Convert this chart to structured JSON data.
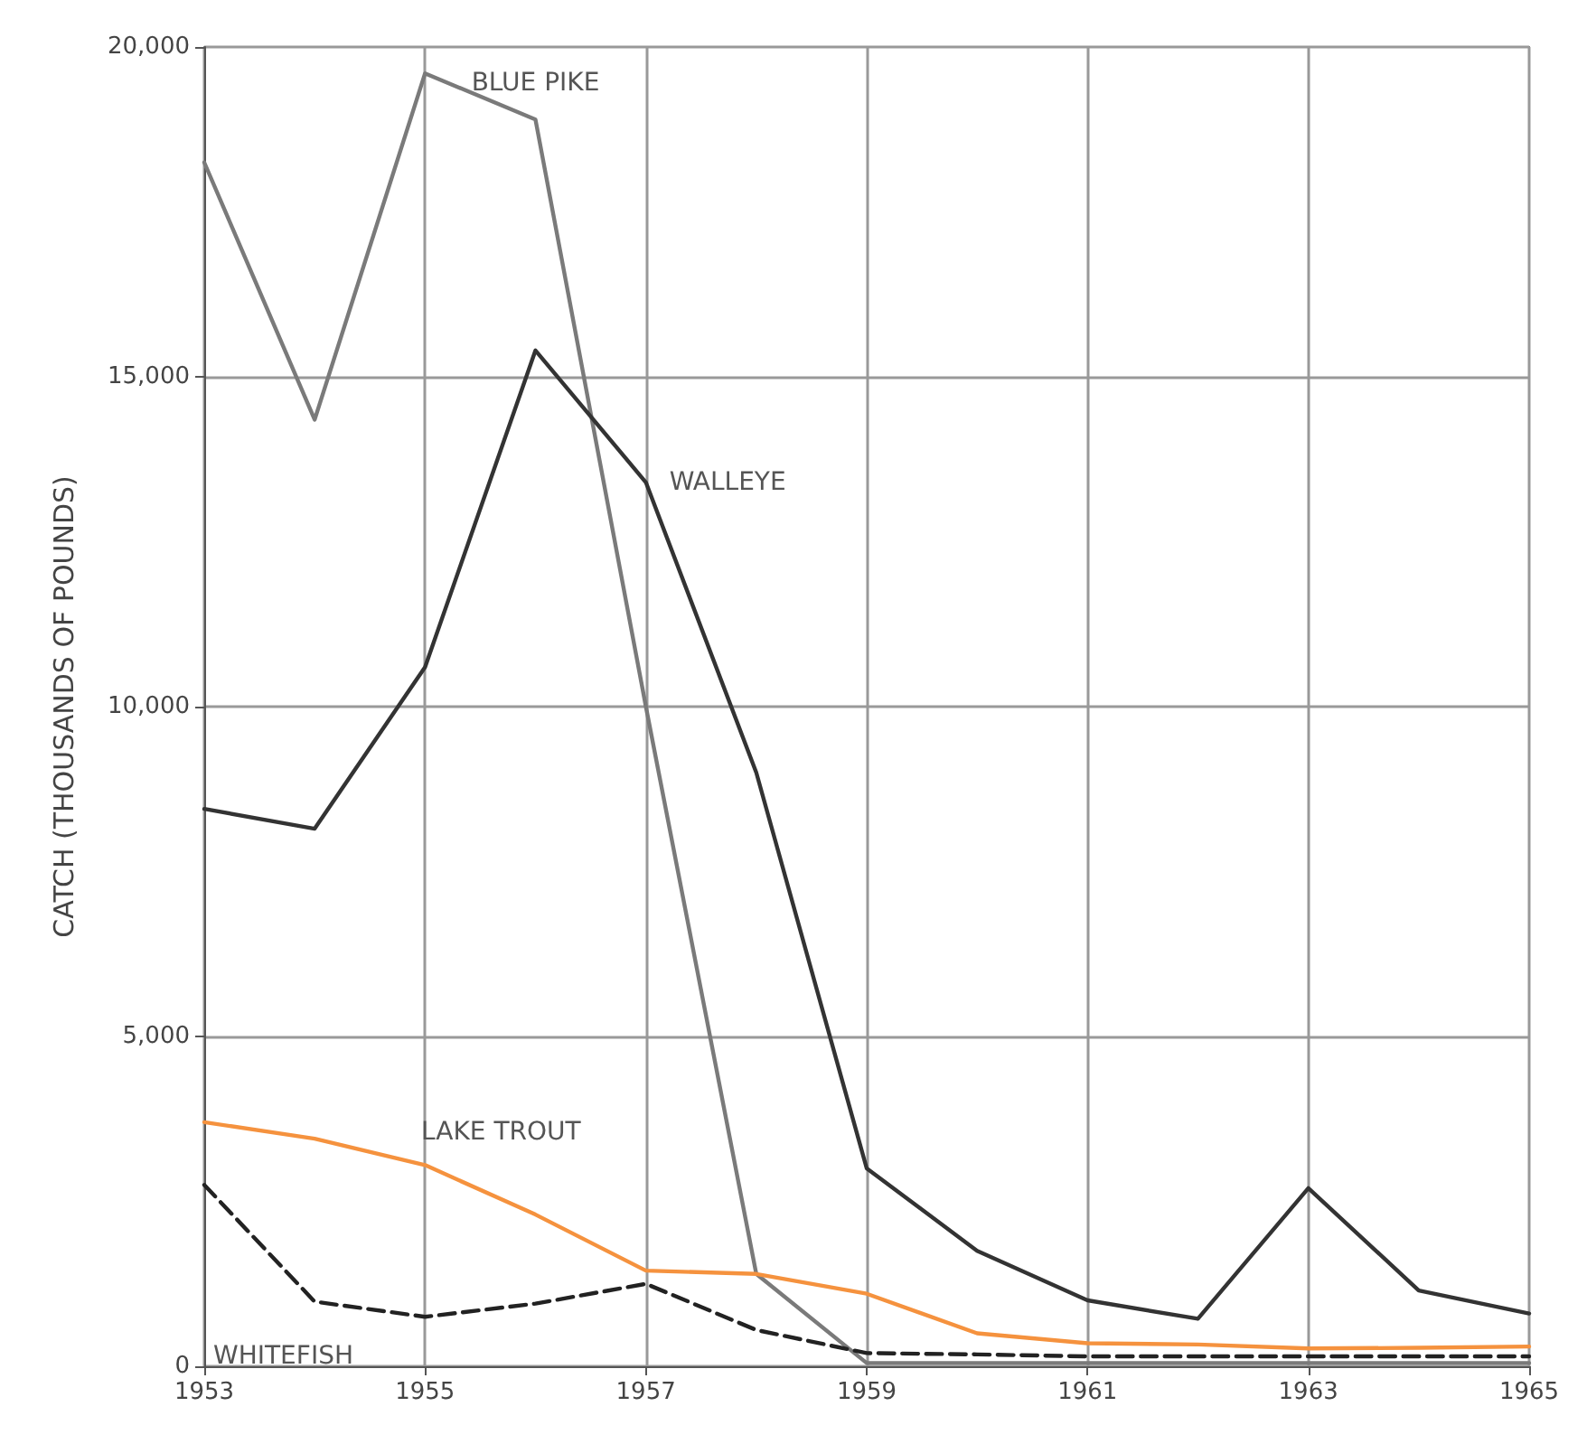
{
  "chart_data": {
    "type": "line",
    "ylabel": "CATCH (THOUSANDS OF POUNDS)",
    "x": [
      1953,
      1954,
      1955,
      1956,
      1957,
      1958,
      1959,
      1960,
      1961,
      1962,
      1963,
      1964,
      1965
    ],
    "series": [
      {
        "name": "BLUE PIKE",
        "color": "#7a7a7a",
        "values": [
          18250,
          14350,
          19600,
          18900,
          10000,
          1400,
          50,
          50,
          50,
          50,
          50,
          50,
          50
        ]
      },
      {
        "name": "WALLEYE",
        "color": "#333333",
        "values": [
          8450,
          8150,
          10600,
          15400,
          13400,
          9000,
          3000,
          1750,
          1000,
          720,
          2700,
          1150,
          800
        ]
      },
      {
        "name": "LAKE TROUT",
        "color": "#f5923e",
        "values": [
          3700,
          3450,
          3050,
          2300,
          1450,
          1400,
          1100,
          500,
          350,
          330,
          270,
          280,
          300
        ]
      },
      {
        "name": "WHITEFISH",
        "color": "#222222",
        "line_style": "dashed",
        "values": [
          2750,
          980,
          750,
          950,
          1250,
          550,
          200,
          180,
          150,
          150,
          150,
          150,
          150
        ]
      }
    ],
    "xlim": [
      1953,
      1965
    ],
    "xticks": [
      1953,
      1955,
      1957,
      1959,
      1961,
      1963,
      1965
    ],
    "ylim": [
      0,
      20000
    ],
    "yticks": [
      {
        "value": 0,
        "label": "0"
      },
      {
        "value": 5000,
        "label": "5,000"
      },
      {
        "value": 10000,
        "label": "10,000"
      },
      {
        "value": 15000,
        "label": "15,000"
      },
      {
        "value": 20000,
        "label": "20,000"
      }
    ],
    "grid": true,
    "legend": false,
    "marker": "none"
  }
}
